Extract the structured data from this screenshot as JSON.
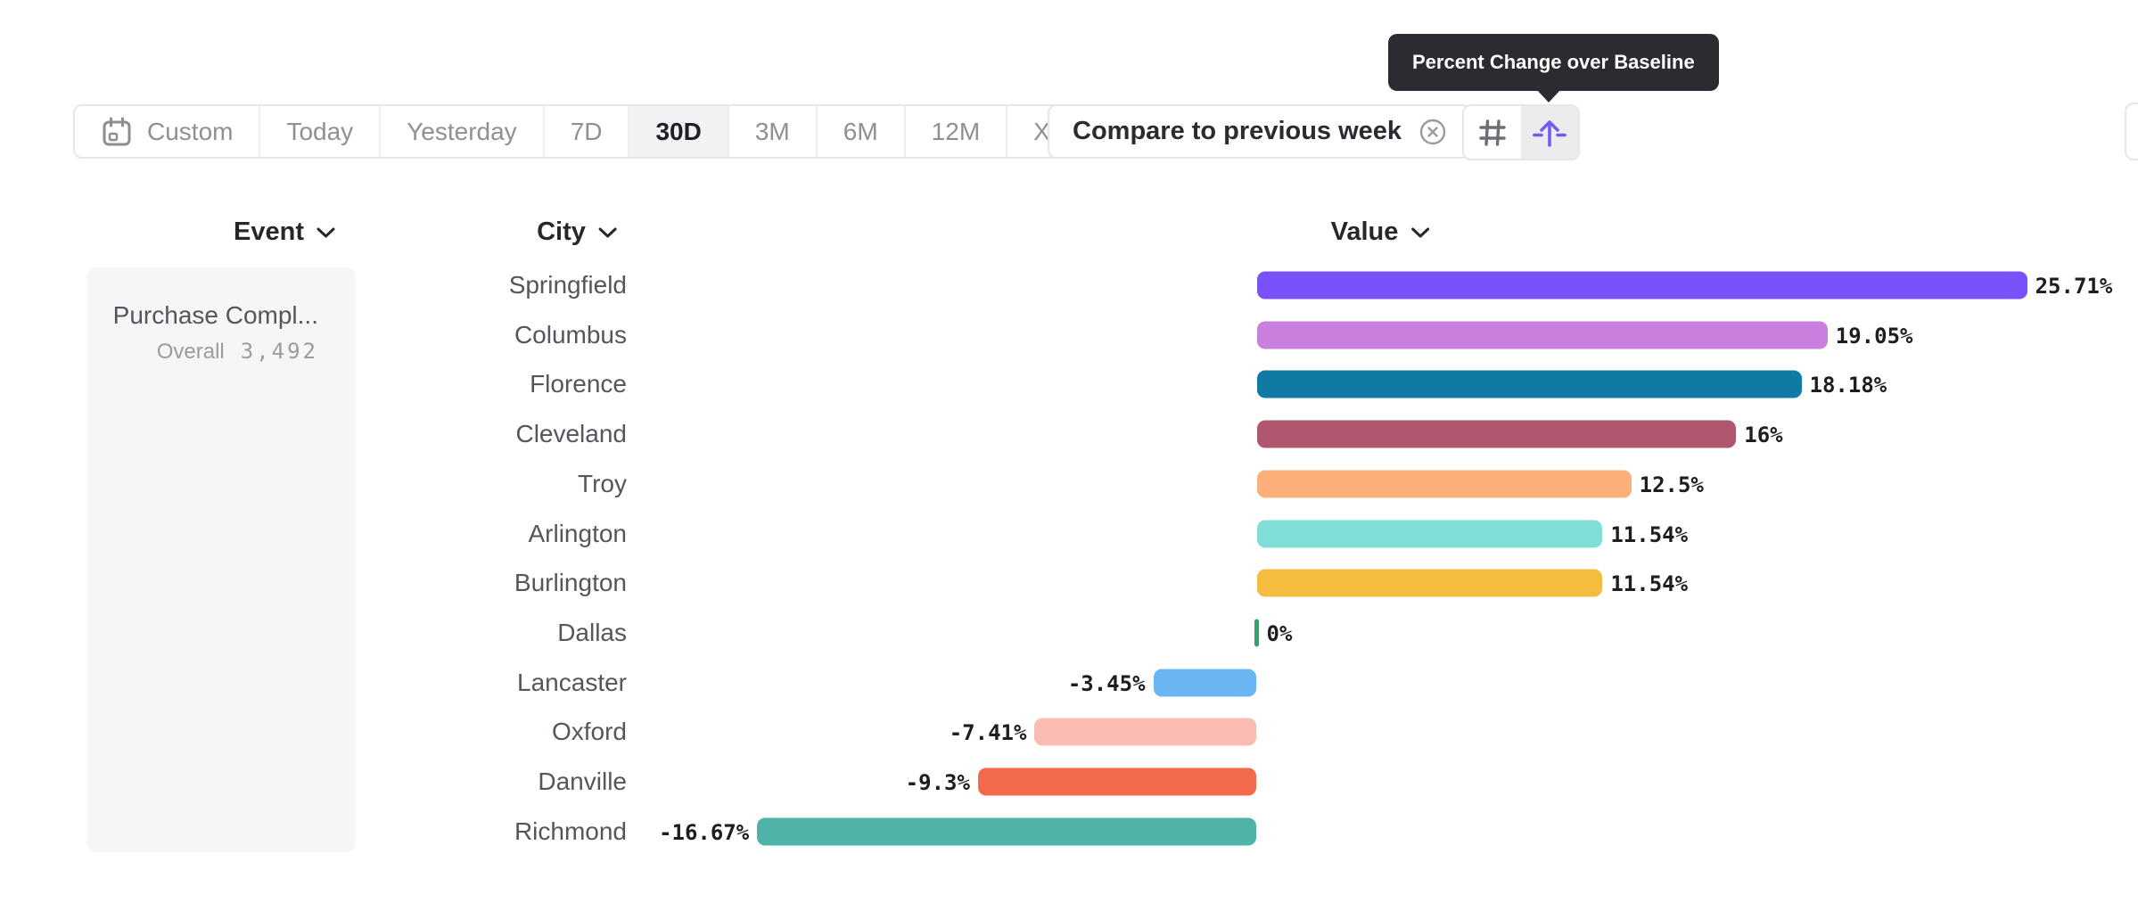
{
  "toolbar": {
    "date_ranges": [
      {
        "label": "Custom",
        "icon": "calendar-icon",
        "selected": false,
        "chevron": false
      },
      {
        "label": "Today",
        "selected": false,
        "chevron": false
      },
      {
        "label": "Yesterday",
        "selected": false,
        "chevron": false
      },
      {
        "label": "7D",
        "selected": false,
        "chevron": false
      },
      {
        "label": "30D",
        "selected": true,
        "chevron": false
      },
      {
        "label": "3M",
        "selected": false,
        "chevron": false
      },
      {
        "label": "6M",
        "selected": false,
        "chevron": false
      },
      {
        "label": "12M",
        "selected": false,
        "chevron": false
      },
      {
        "label": "XTD",
        "selected": false,
        "chevron": true
      }
    ],
    "compare_chip": {
      "label": "Compare to previous week",
      "close_icon": "x-circle-icon"
    },
    "view_toggle": {
      "options": [
        {
          "icon": "hash-grid-icon",
          "selected": false
        },
        {
          "icon": "baseline-arrow-icon",
          "selected": true
        }
      ],
      "selected_icon_color": "#6f5bf7",
      "unselected_icon_color": "#6d6d74"
    }
  },
  "tooltip": {
    "text": "Percent Change over Baseline",
    "background": "#2b2b31"
  },
  "columns": {
    "event": "Event",
    "city": "City",
    "value": "Value"
  },
  "event_panel": {
    "event_name": "Purchase Compl...",
    "overall_label": "Overall",
    "overall_value": "3,492"
  },
  "chart_data": {
    "type": "bar",
    "orientation": "horizontal",
    "title": "",
    "xlabel": "Value",
    "ylabel": "City",
    "series_label": "Percent Change over Baseline",
    "grid": false,
    "legend": false,
    "xlim": [
      -20,
      30
    ],
    "categories": [
      "Springfield",
      "Columbus",
      "Florence",
      "Cleveland",
      "Troy",
      "Arlington",
      "Burlington",
      "Dallas",
      "Lancaster",
      "Oxford",
      "Danville",
      "Richmond"
    ],
    "values": [
      25.71,
      19.05,
      18.18,
      16,
      12.5,
      11.54,
      11.54,
      0,
      -3.45,
      -7.41,
      -9.3,
      -16.67
    ],
    "value_labels": [
      "25.71%",
      "19.05%",
      "18.18%",
      "16%",
      "12.5%",
      "11.54%",
      "11.54%",
      "0%",
      "-3.45%",
      "-7.41%",
      "-9.3%",
      "-16.67%"
    ],
    "colors": [
      "#7a52fb",
      "#c87fdd",
      "#0f7ba4",
      "#b0566f",
      "#fdaf79",
      "#81ded6",
      "#f5bd3f",
      "#2fa469",
      "#6ab6f2",
      "#fbbcb4",
      "#f3694c",
      "#4fb3a8"
    ]
  },
  "theme": {
    "accent_purple": "#6f5bf7",
    "selected_bg": "#f2f2f4",
    "panel_bg": "#f6f6f7",
    "border": "#e6e6e8",
    "text_dark": "#1f1f26",
    "text_gray": "#8f8f96",
    "zero_tick_green": "#2fa469"
  }
}
